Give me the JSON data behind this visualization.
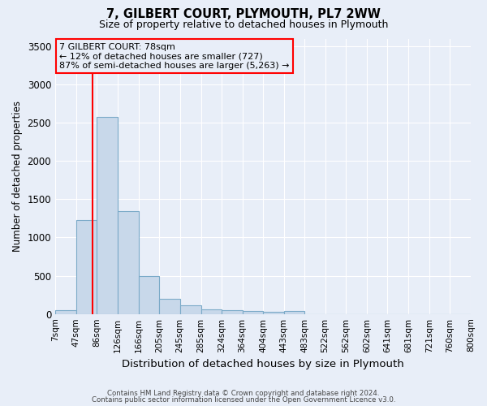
{
  "title1": "7, GILBERT COURT, PLYMOUTH, PL7 2WW",
  "title2": "Size of property relative to detached houses in Plymouth",
  "xlabel": "Distribution of detached houses by size in Plymouth",
  "ylabel": "Number of detached properties",
  "footer1": "Contains HM Land Registry data © Crown copyright and database right 2024.",
  "footer2": "Contains public sector information licensed under the Open Government Licence v3.0.",
  "annotation_title": "7 GILBERT COURT: 78sqm",
  "annotation_line1": "← 12% of detached houses are smaller (727)",
  "annotation_line2": "87% of semi-detached houses are larger (5,263) →",
  "property_size": 78,
  "bin_edges": [
    7,
    47,
    86,
    126,
    166,
    205,
    245,
    285,
    324,
    364,
    404,
    443,
    483,
    522,
    562,
    602,
    641,
    681,
    721,
    760,
    800
  ],
  "bin_heights": [
    50,
    1230,
    2580,
    1340,
    500,
    200,
    115,
    60,
    50,
    40,
    30,
    40,
    0,
    0,
    0,
    0,
    0,
    0,
    0,
    0
  ],
  "bar_color": "#c8d8ea",
  "bar_edge_color": "#7baac8",
  "vline_color": "red",
  "annotation_box_color": "red",
  "background_color": "#e8eef8",
  "grid_color": "white",
  "ylim": [
    0,
    3600
  ],
  "yticks": [
    0,
    500,
    1000,
    1500,
    2000,
    2500,
    3000,
    3500
  ]
}
